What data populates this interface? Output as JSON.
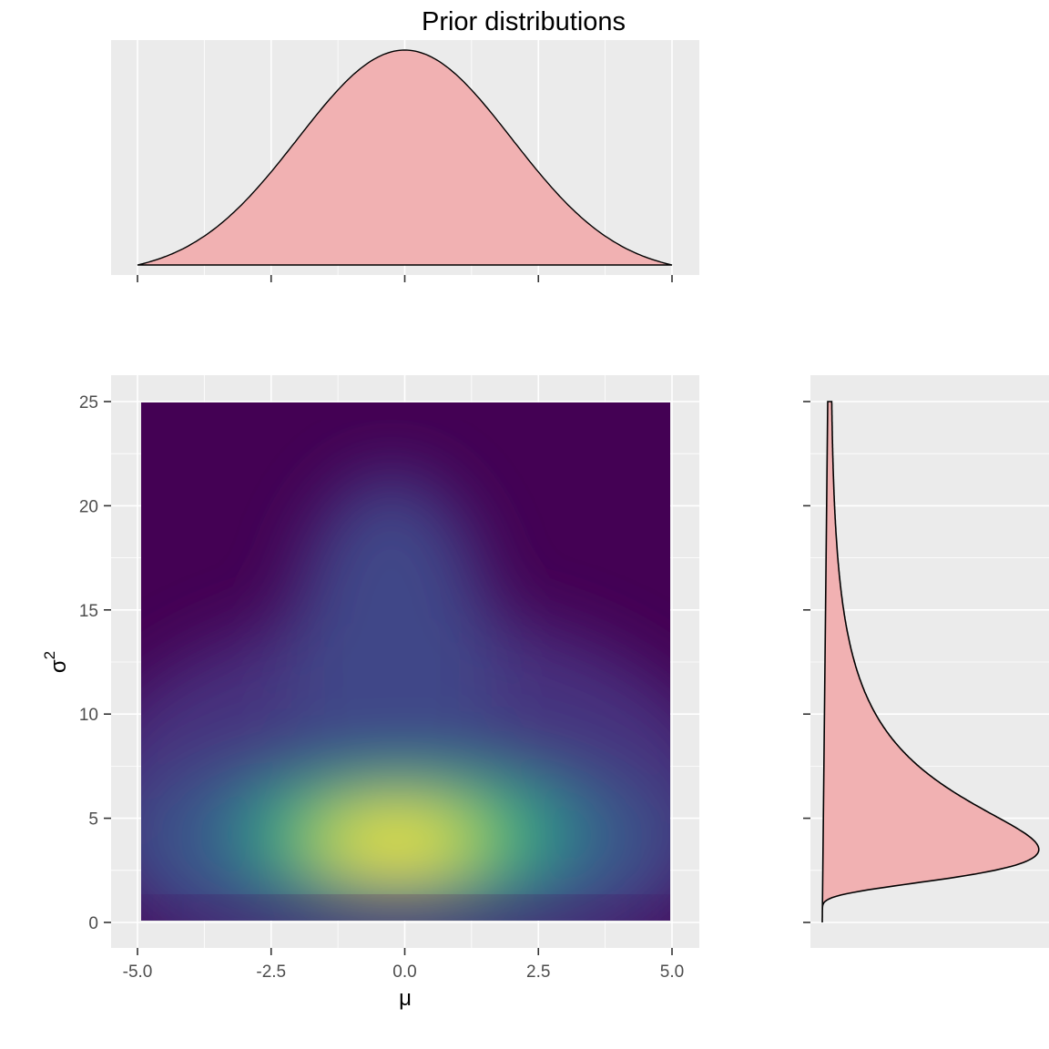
{
  "chart_data": [
    {
      "type": "area",
      "role": "marginal-top",
      "title": "Prior distributions",
      "xlim": [
        -5.0,
        5.0
      ],
      "distribution": "normal",
      "mean": 0,
      "sd": 2,
      "fill_color": "#f1b1b2",
      "line_color": "#000000",
      "x_ticks": [
        -5.0,
        -2.5,
        0.0,
        2.5,
        5.0
      ]
    },
    {
      "type": "heatmap",
      "role": "joint-density",
      "xlabel": "μ",
      "ylabel": "σ",
      "ylabel_superscript": "2",
      "xlim": [
        -5.0,
        5.0
      ],
      "ylim": [
        0,
        25
      ],
      "x_ticks": [
        "-5.0",
        "-2.5",
        "0.0",
        "2.5",
        "5.0"
      ],
      "y_ticks": [
        "0",
        "5",
        "10",
        "15",
        "20",
        "25"
      ],
      "peak": {
        "x": 0.0,
        "y": 3.5
      },
      "colormap": [
        "#440154",
        "#3b528b",
        "#21908c",
        "#5dc863",
        "#fde725"
      ]
    },
    {
      "type": "area",
      "role": "marginal-right",
      "ylim": [
        0,
        25
      ],
      "distribution": "inverse-gamma",
      "shape": 2.6,
      "scale": 12.6,
      "mode": 3.5,
      "fill_color": "#f1b1b2",
      "line_color": "#000000",
      "y_ticks": [
        0,
        5,
        10,
        15,
        20,
        25
      ]
    }
  ],
  "colors": {
    "panel_bg": "#ebebeb",
    "grid": "#ffffff",
    "tick": "#333333"
  }
}
